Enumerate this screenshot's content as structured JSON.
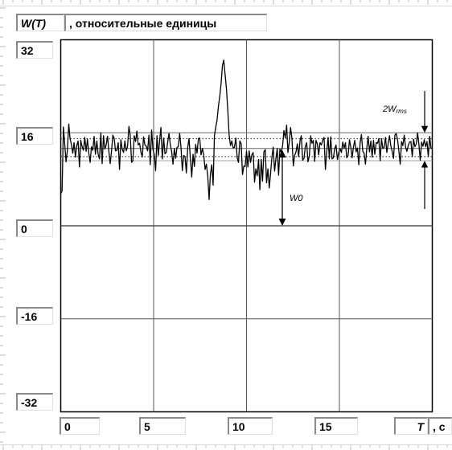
{
  "chart_data": {
    "type": "line",
    "title_symbol": "W(T)",
    "title_units": ", относительные единицы",
    "xlabel_symbol": "T",
    "xlabel_units": ", c",
    "xlim": [
      0,
      20
    ],
    "ylim": [
      -32,
      32
    ],
    "x_ticks": [
      "0",
      "5",
      "10",
      "15"
    ],
    "y_ticks": [
      "32",
      "16",
      "0",
      "-16",
      "-32"
    ],
    "grid": true,
    "mean_level": 13.3,
    "rms_band": [
      11.9,
      15.0
    ],
    "outer_band": [
      11.2,
      16.0
    ],
    "annotations": {
      "mean_label": "W0",
      "rms_label_main": "2W",
      "rms_label_sub": "rms"
    },
    "series": [
      {
        "x_range": [
          0,
          20
        ],
        "values": [
          5.5,
          6,
          17,
          14,
          11,
          13,
          17.5,
          15,
          14,
          12.5,
          14.3,
          11.8,
          13.8,
          14.6,
          10.1,
          14.7,
          13.6,
          13,
          15.2,
          12.8,
          14.9,
          12.5,
          10.9,
          13.6,
          13,
          15.4,
          12.3,
          14.6,
          12.3,
          11.5,
          16,
          10.7,
          15.5,
          13.2,
          13.9,
          15.4,
          12.9,
          10.7,
          12.9,
          15.6,
          15,
          12.9,
          13,
          14.3,
          9.7,
          14.8,
          13.2,
          12.6,
          14.6,
          12.9,
          13.7,
          17.1,
          15.6,
          10.9,
          11.2,
          15.5,
          14.5,
          16.3,
          13.9,
          14.2,
          12.7,
          11.8,
          15.3,
          13.9,
          13.7,
          12.9,
          15.6,
          10.5,
          16.5,
          13.1,
          12.3,
          9.5,
          15.5,
          12.1,
          14.7,
          16.9,
          11.5,
          15.1,
          12.4,
          12.6,
          14.3,
          15.9,
          13.9,
          12.8,
          10.6,
          13.3,
          11.6,
          13.5,
          13.6,
          15.9,
          13.4,
          9.5,
          12.1,
          11.9,
          9.1,
          13.5,
          15,
          11.7,
          8.4,
          12.3,
          10.2,
          14,
          12.5,
          15,
          15.1,
          12.2,
          13.3,
          12.2,
          9.7,
          10.6,
          8.6,
          4.5,
          8.9,
          10.5,
          7,
          15.5,
          17,
          18.2,
          20.6,
          22.3,
          24.5,
          27.6,
          28.5,
          26,
          23.5,
          20,
          15.6,
          13.8,
          14.6,
          13.4,
          13.5,
          15.1,
          11.7,
          10.9,
          14.6,
          14.1,
          8.8,
          10.3,
          10.2,
          12.8,
          10.1,
          12.9,
          10.9,
          12.2,
          12.6,
          7.5,
          9.8,
          8.6,
          11.4,
          6.2,
          11.4,
          7.7,
          12.7,
          13.1,
          7.4,
          9.8,
          6.5,
          9,
          11.8,
          13.5,
          9.4,
          11.6,
          13.3,
          8.7,
          13.2,
          12.6,
          13.8,
          16.4,
          15.1,
          17.3,
          12.6,
          14.4,
          16.9,
          15,
          10.3,
          12.1,
          12.7,
          14.1,
          11.9,
          14.6,
          15.5,
          11.3,
          11.6,
          13.6,
          14.3,
          11,
          12,
          15.5,
          14.2,
          14.7,
          11.1,
          14.7,
          14.1,
          12.2,
          14.3,
          13.9,
          14.7,
          15.2,
          9.7,
          12.6,
          15.2,
          11.5,
          15.3,
          11.5,
          11.7,
          13.3,
          13.9,
          11.4,
          12.6,
          13.3,
          12.6,
          14.4,
          13.3,
          14.3,
          11.7,
          12.1,
          14.8,
          13.6,
          11.7,
          13.5,
          14.7,
          12.7,
          13.4,
          10.5,
          14.3,
          15.7,
          12.8,
          12.5,
          10.6,
          13.4,
          15.4,
          12.7,
          14.6,
          11.8,
          14.7,
          12.3,
          14.3,
          14.2,
          15,
          11.2,
          15,
          13.3,
          13.5,
          15.2,
          12.6,
          14.2,
          15.5,
          13.7,
          12.8,
          11.6,
          15.6,
          15.9,
          14.8,
          12.8,
          10.6,
          14.5,
          13.8,
          15.6,
          13.5,
          12.8,
          13.8,
          14.4,
          14.5,
          11.9,
          14.9,
          13.6,
          14.1,
          16,
          13.9,
          11.3,
          14.4,
          13.7,
          14.8,
          13.6,
          14.5,
          11.9,
          15.4,
          13.4,
          13.3
        ]
      }
    ]
  }
}
